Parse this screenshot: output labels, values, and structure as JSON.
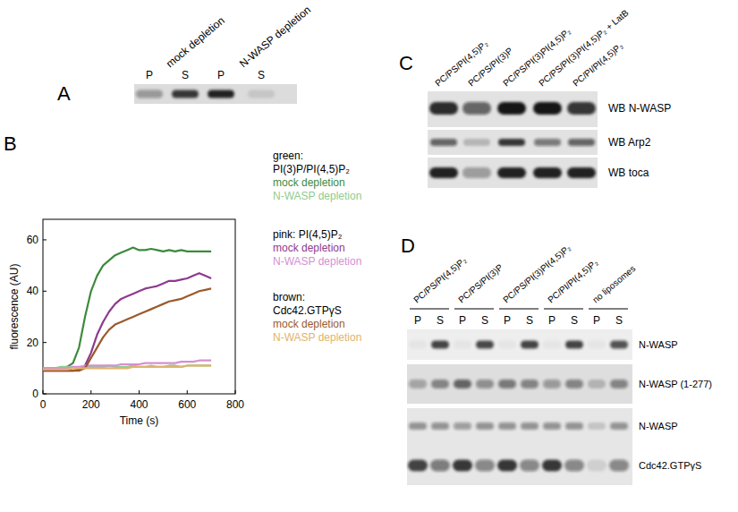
{
  "chart_data": {
    "type": "line",
    "title": "B",
    "x_label": "Time (s)",
    "y_label": "fluorescence (AU)",
    "annotations": [
      "green:",
      "PI(3)P/PI(4,5)P₂",
      "pink: PI(4,5)P₂",
      "brown:",
      "Cdc42.GTPγS"
    ],
    "x": [
      0,
      25,
      50,
      75,
      100,
      125,
      150,
      175,
      200,
      225,
      250,
      275,
      300,
      325,
      350,
      375,
      400,
      425,
      450,
      475,
      500,
      525,
      550,
      575,
      600,
      625,
      650,
      675,
      700
    ],
    "series": [
      {
        "name": "mock depletion",
        "color": "#3d8a3d",
        "values": [
          10,
          10,
          10,
          10,
          10.5,
          12,
          18,
          30,
          40,
          46,
          50,
          52,
          54,
          55,
          56,
          57,
          56,
          56,
          56.5,
          56,
          55.5,
          56,
          55.5,
          56,
          55.5,
          55.5,
          55.5,
          55.5,
          55.5
        ]
      },
      {
        "name": "N-WASP depletion",
        "color": "#8fcc8f",
        "values": [
          10,
          10,
          10,
          10.5,
          10.5,
          10.5,
          10,
          10.5,
          10.5,
          10.5,
          10.5,
          11,
          10.5,
          10.5,
          10.5,
          11,
          10.5,
          10.5,
          11,
          10.5,
          10.5,
          11,
          11,
          10.5,
          11,
          11,
          11,
          11,
          11
        ]
      },
      {
        "name": "mock depletion",
        "color": "#8e3a8e",
        "values": [
          9,
          9,
          9,
          9,
          9,
          9,
          9.5,
          11,
          16,
          23,
          28,
          32,
          35,
          37,
          38,
          39,
          40,
          41,
          41.5,
          42,
          43,
          44,
          44,
          44.5,
          45,
          46,
          47,
          46,
          45
        ]
      },
      {
        "name": "N-WASP depletion",
        "color": "#d58fd5",
        "values": [
          10,
          10,
          10,
          10,
          10,
          10.5,
          10.5,
          11,
          11,
          11,
          11,
          11,
          11,
          11.5,
          11.5,
          11.5,
          11.5,
          12,
          12,
          12,
          12,
          12,
          12,
          12.5,
          12.5,
          12.5,
          13,
          13,
          13
        ]
      },
      {
        "name": "mock depletion",
        "color": "#9a5a2c",
        "values": [
          9,
          9,
          9,
          9,
          9,
          9,
          9,
          10,
          14,
          18,
          22,
          25,
          27,
          28,
          29,
          30,
          31,
          32,
          33,
          34,
          35,
          36,
          36.5,
          37,
          38,
          39,
          40,
          40.5,
          41
        ]
      },
      {
        "name": "N-WASP depletion",
        "color": "#e0b46c",
        "values": [
          9.5,
          9.5,
          9.5,
          9.5,
          9.5,
          10,
          10,
          10,
          10,
          10,
          10,
          10,
          10,
          10,
          10,
          10.5,
          10.5,
          10.5,
          10.5,
          10.5,
          10.5,
          10.5,
          10.5,
          10.5,
          11,
          11,
          11,
          11,
          11
        ]
      }
    ],
    "xlim": [
      0,
      800
    ],
    "xticks": [
      0,
      200,
      400,
      600,
      800
    ],
    "ylim": [
      0,
      68
    ],
    "yticks": [
      0,
      20,
      40,
      60
    ]
  },
  "blot_a": {
    "label": "A",
    "conditions": [
      "mock depletion",
      "N-WASP depletion"
    ],
    "lanes": [
      "P",
      "S",
      "P",
      "S"
    ]
  },
  "blot_c": {
    "label": "C",
    "lanes": [
      "PC/PS/PI(4,5)P₂",
      "PC/PS/PI(3)P",
      "PC/PS/PI(3)PI(4,5)P₂",
      "PC/PS/PI(3)PI(4,5)P₂ + LatB",
      "PC/PI/PI(4,5)P₂"
    ],
    "probes": [
      "WB N-WASP",
      "WB Arp2",
      "WB toca"
    ]
  },
  "blot_d": {
    "label": "D",
    "groups": [
      "PC/PS/PI(4,5)P₂",
      "PC/PS/PI(3)P",
      "PC/PS/PI(3)PI(4,5)P₂",
      "PC/PI/PI(4,5)P₂",
      "no liposomes"
    ],
    "lanes": [
      "P",
      "S",
      "P",
      "S",
      "P",
      "S",
      "P",
      "S",
      "P",
      "S"
    ],
    "probes": [
      "N-WASP",
      "N-WASP (1-277)",
      "N-WASP",
      "Cdc42.GTPγS"
    ]
  }
}
